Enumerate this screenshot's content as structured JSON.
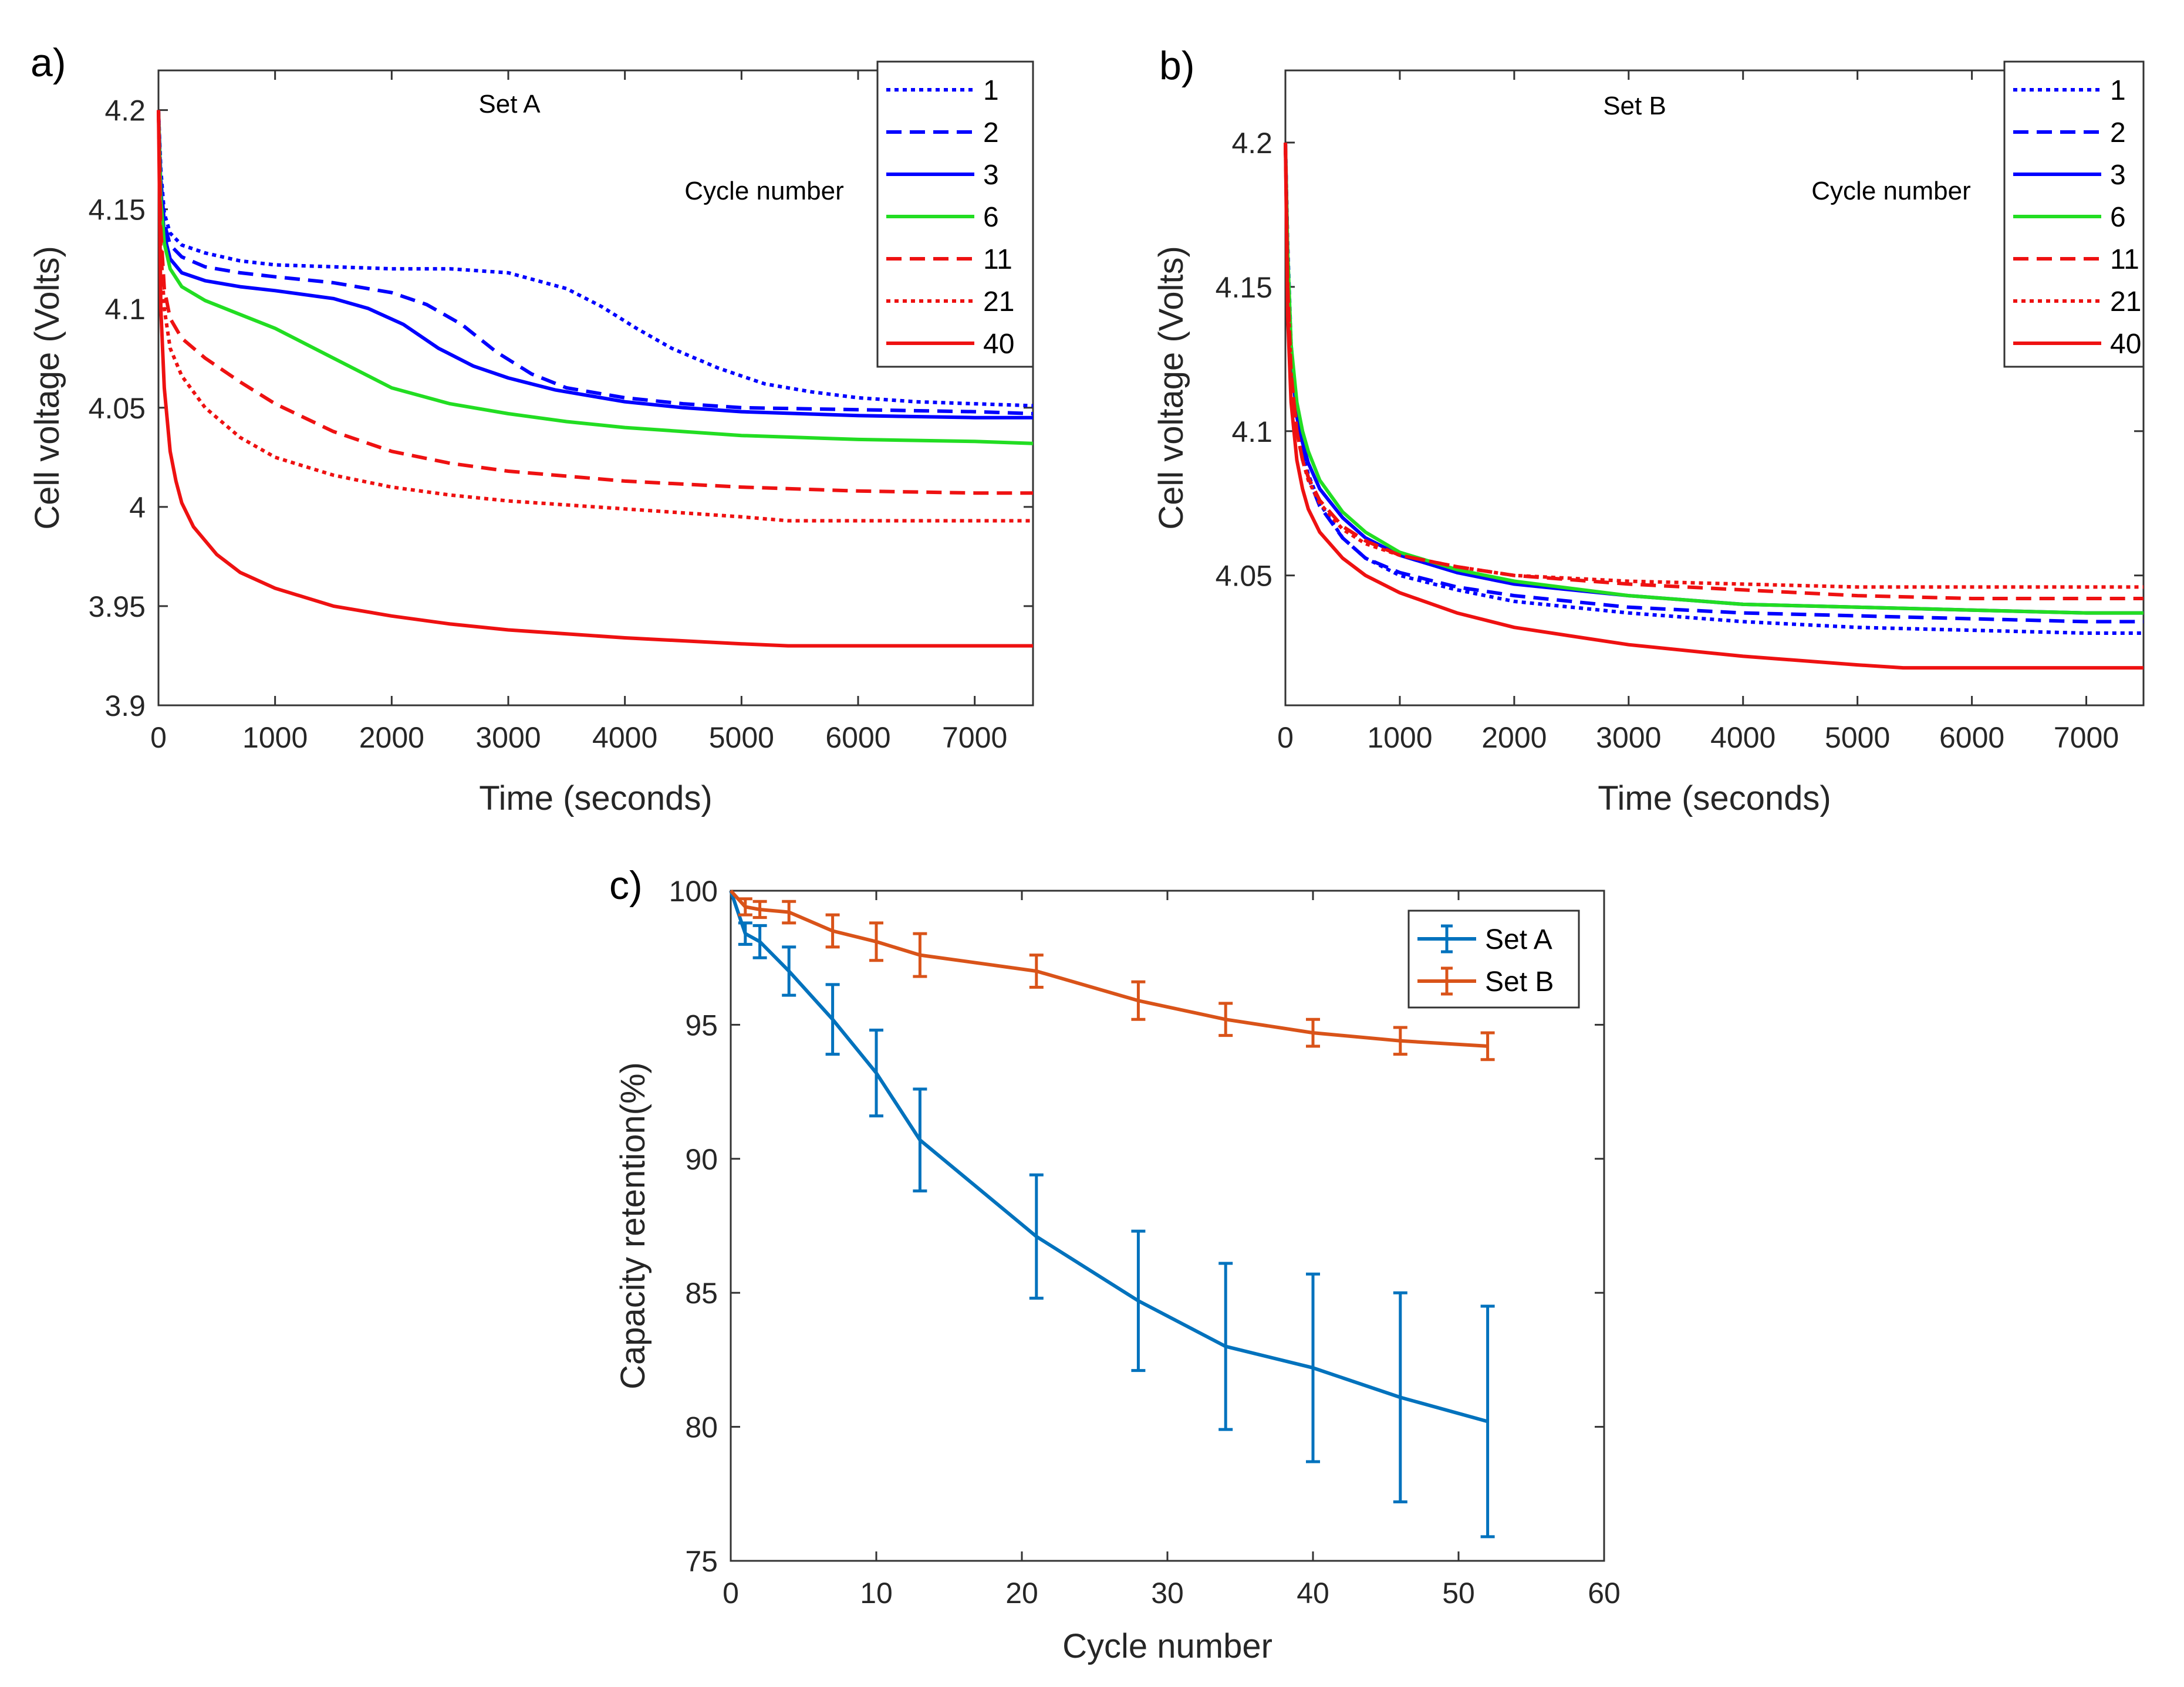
{
  "chart_data": [
    {
      "panel": "a)",
      "type": "line",
      "title": "Set A",
      "xlabel": "Time (seconds)",
      "ylabel": "Cell voltage (Volts)",
      "xlim": [
        0,
        7500
      ],
      "ylim": [
        3.9,
        4.22
      ],
      "xticks": [
        0,
        1000,
        2000,
        3000,
        4000,
        5000,
        6000,
        7000
      ],
      "yticks": [
        3.9,
        3.95,
        4,
        4.05,
        4.1,
        4.15,
        4.2
      ],
      "xtick_labels": [
        "0",
        "1000",
        "2000",
        "3000",
        "4000",
        "5000",
        "6000",
        "7000"
      ],
      "ytick_labels": [
        "3.9",
        "3.95",
        "4",
        "4.05",
        "4.1",
        "4.15",
        "4.2"
      ],
      "legend_title": "Cycle number",
      "legend_position": "top-right",
      "series": [
        {
          "name": "1",
          "color": "#0000ff",
          "dash": "dotted",
          "x": [
            0,
            20,
            50,
            100,
            200,
            400,
            700,
            1000,
            1500,
            2000,
            2500,
            3000,
            3500,
            3800,
            4100,
            4400,
            4800,
            5200,
            5600,
            6000,
            6500,
            7000,
            7500
          ],
          "y": [
            4.2,
            4.17,
            4.148,
            4.138,
            4.132,
            4.128,
            4.124,
            4.122,
            4.121,
            4.12,
            4.12,
            4.118,
            4.11,
            4.101,
            4.09,
            4.08,
            4.07,
            4.062,
            4.058,
            4.055,
            4.053,
            4.052,
            4.051
          ]
        },
        {
          "name": "2",
          "color": "#0000ff",
          "dash": "dashed",
          "x": [
            0,
            20,
            50,
            100,
            200,
            400,
            700,
            1000,
            1500,
            2000,
            2300,
            2600,
            2900,
            3200,
            3500,
            4000,
            4500,
            5000,
            6000,
            7000,
            7500
          ],
          "y": [
            4.2,
            4.165,
            4.143,
            4.132,
            4.126,
            4.121,
            4.118,
            4.116,
            4.113,
            4.108,
            4.102,
            4.092,
            4.078,
            4.067,
            4.06,
            4.055,
            4.052,
            4.05,
            4.049,
            4.048,
            4.047
          ]
        },
        {
          "name": "3",
          "color": "#0000ff",
          "dash": "solid",
          "x": [
            0,
            20,
            50,
            100,
            200,
            400,
            700,
            1000,
            1500,
            1800,
            2100,
            2400,
            2700,
            3000,
            3400,
            4000,
            4500,
            5000,
            6000,
            7000,
            7500
          ],
          "y": [
            4.2,
            4.16,
            4.137,
            4.125,
            4.118,
            4.114,
            4.111,
            4.109,
            4.105,
            4.1,
            4.092,
            4.08,
            4.071,
            4.065,
            4.059,
            4.053,
            4.05,
            4.048,
            4.046,
            4.045,
            4.045
          ]
        },
        {
          "name": "6",
          "color": "#22dd22",
          "dash": "solid",
          "x": [
            0,
            20,
            50,
            100,
            200,
            400,
            700,
            1000,
            1500,
            2000,
            2500,
            3000,
            3500,
            4000,
            5000,
            6000,
            7000,
            7500
          ],
          "y": [
            4.2,
            4.155,
            4.133,
            4.12,
            4.111,
            4.104,
            4.097,
            4.09,
            4.075,
            4.06,
            4.052,
            4.047,
            4.043,
            4.04,
            4.036,
            4.034,
            4.033,
            4.032
          ]
        },
        {
          "name": "11",
          "color": "#ee1111",
          "dash": "dashed",
          "x": [
            0,
            20,
            50,
            100,
            200,
            400,
            700,
            1000,
            1500,
            2000,
            2500,
            3000,
            4000,
            5000,
            6000,
            7000,
            7500
          ],
          "y": [
            4.2,
            4.14,
            4.11,
            4.095,
            4.085,
            4.075,
            4.063,
            4.052,
            4.038,
            4.028,
            4.022,
            4.018,
            4.013,
            4.01,
            4.008,
            4.007,
            4.007
          ]
        },
        {
          "name": "21",
          "color": "#ee1111",
          "dash": "dotted",
          "x": [
            0,
            20,
            50,
            100,
            200,
            400,
            700,
            1000,
            1500,
            2000,
            2500,
            3000,
            4000,
            5000,
            5400,
            6000,
            7000,
            7500
          ],
          "y": [
            4.2,
            4.13,
            4.1,
            4.08,
            4.066,
            4.05,
            4.035,
            4.025,
            4.016,
            4.01,
            4.006,
            4.003,
            3.999,
            3.995,
            3.993,
            3.993,
            3.993,
            3.993
          ]
        },
        {
          "name": "40",
          "color": "#ee1111",
          "dash": "solid",
          "x": [
            0,
            20,
            50,
            100,
            150,
            200,
            300,
            500,
            700,
            1000,
            1500,
            2000,
            2500,
            3000,
            4000,
            5000,
            5400,
            6000,
            7000,
            7500
          ],
          "y": [
            4.2,
            4.1,
            4.06,
            4.028,
            4.013,
            4.002,
            3.99,
            3.976,
            3.967,
            3.959,
            3.95,
            3.945,
            3.941,
            3.938,
            3.934,
            3.931,
            3.93,
            3.93,
            3.93,
            3.93
          ]
        }
      ]
    },
    {
      "panel": "b)",
      "type": "line",
      "title": "Set B",
      "xlabel": "Time (seconds)",
      "ylabel": "Cell voltage (Volts)",
      "xlim": [
        0,
        7500
      ],
      "ylim": [
        4.005,
        4.225
      ],
      "xticks": [
        0,
        1000,
        2000,
        3000,
        4000,
        5000,
        6000,
        7000
      ],
      "yticks": [
        4.05,
        4.1,
        4.15,
        4.2
      ],
      "xtick_labels": [
        "0",
        "1000",
        "2000",
        "3000",
        "4000",
        "5000",
        "6000",
        "7000"
      ],
      "ytick_labels": [
        "4.05",
        "4.1",
        "4.15",
        "4.2"
      ],
      "legend_title": "Cycle number",
      "legend_position": "top-right",
      "series": [
        {
          "name": "1",
          "color": "#0000ff",
          "dash": "dotted",
          "x": [
            0,
            20,
            50,
            100,
            150,
            200,
            300,
            500,
            700,
            1000,
            1500,
            2000,
            3000,
            4000,
            5000,
            6000,
            7000,
            7500
          ],
          "y": [
            4.2,
            4.165,
            4.13,
            4.105,
            4.093,
            4.085,
            4.075,
            4.063,
            4.056,
            4.05,
            4.045,
            4.041,
            4.037,
            4.034,
            4.032,
            4.031,
            4.03,
            4.03
          ]
        },
        {
          "name": "2",
          "color": "#0000ff",
          "dash": "dashed",
          "x": [
            0,
            20,
            50,
            100,
            150,
            200,
            300,
            500,
            700,
            1000,
            1500,
            2000,
            3000,
            4000,
            5000,
            6000,
            7000,
            7500
          ],
          "y": [
            4.2,
            4.162,
            4.128,
            4.103,
            4.092,
            4.084,
            4.074,
            4.063,
            4.056,
            4.051,
            4.046,
            4.043,
            4.039,
            4.037,
            4.036,
            4.035,
            4.034,
            4.034
          ]
        },
        {
          "name": "3",
          "color": "#0000ff",
          "dash": "solid",
          "x": [
            0,
            20,
            50,
            100,
            150,
            200,
            300,
            500,
            700,
            1000,
            1500,
            2000,
            3000,
            4000,
            5000,
            6000,
            7000,
            7500
          ],
          "y": [
            4.2,
            4.16,
            4.126,
            4.105,
            4.096,
            4.089,
            4.08,
            4.07,
            4.063,
            4.057,
            4.051,
            4.047,
            4.043,
            4.04,
            4.039,
            4.038,
            4.037,
            4.037
          ]
        },
        {
          "name": "6",
          "color": "#22dd22",
          "dash": "solid",
          "x": [
            0,
            20,
            50,
            100,
            150,
            200,
            300,
            500,
            700,
            1000,
            1500,
            2000,
            3000,
            4000,
            5000,
            6000,
            7000,
            7500
          ],
          "y": [
            4.2,
            4.162,
            4.13,
            4.11,
            4.1,
            4.093,
            4.083,
            4.072,
            4.065,
            4.058,
            4.052,
            4.048,
            4.043,
            4.04,
            4.039,
            4.038,
            4.037,
            4.037
          ]
        },
        {
          "name": "11",
          "color": "#ee1111",
          "dash": "dashed",
          "x": [
            0,
            20,
            50,
            100,
            150,
            200,
            300,
            500,
            700,
            1000,
            1500,
            2000,
            3000,
            4000,
            5000,
            6000,
            7000,
            7500
          ],
          "y": [
            4.2,
            4.15,
            4.12,
            4.1,
            4.09,
            4.084,
            4.076,
            4.067,
            4.062,
            4.057,
            4.053,
            4.05,
            4.047,
            4.045,
            4.043,
            4.042,
            4.042,
            4.042
          ]
        },
        {
          "name": "21",
          "color": "#ee1111",
          "dash": "dotted",
          "x": [
            0,
            20,
            50,
            100,
            150,
            200,
            300,
            500,
            700,
            1000,
            1500,
            2000,
            3000,
            4000,
            5000,
            6000,
            7000,
            7500
          ],
          "y": [
            4.2,
            4.15,
            4.12,
            4.1,
            4.09,
            4.083,
            4.075,
            4.066,
            4.061,
            4.057,
            4.053,
            4.05,
            4.048,
            4.047,
            4.046,
            4.046,
            4.046,
            4.046
          ]
        },
        {
          "name": "40",
          "color": "#ee1111",
          "dash": "solid",
          "x": [
            0,
            20,
            50,
            100,
            150,
            200,
            300,
            500,
            700,
            1000,
            1500,
            2000,
            2500,
            3000,
            4000,
            5000,
            5400,
            6000,
            7000,
            7500
          ],
          "y": [
            4.2,
            4.14,
            4.11,
            4.09,
            4.08,
            4.073,
            4.065,
            4.056,
            4.05,
            4.044,
            4.037,
            4.032,
            4.029,
            4.026,
            4.022,
            4.019,
            4.018,
            4.018,
            4.018,
            4.018
          ]
        }
      ]
    },
    {
      "panel": "c)",
      "type": "line",
      "title": "",
      "xlabel": "Cycle number",
      "ylabel": "Capacity retention(%)",
      "xlim": [
        0,
        60
      ],
      "ylim": [
        75,
        100
      ],
      "xticks": [
        0,
        10,
        20,
        30,
        40,
        50,
        60
      ],
      "yticks": [
        75,
        80,
        85,
        90,
        95,
        100
      ],
      "xtick_labels": [
        "0",
        "10",
        "20",
        "30",
        "40",
        "50",
        "60"
      ],
      "ytick_labels": [
        "75",
        "80",
        "85",
        "90",
        "95",
        "100"
      ],
      "legend_position": "top-right",
      "series": [
        {
          "name": "Set A",
          "color": "#0072bd",
          "x": [
            0,
            1,
            2,
            4,
            7,
            10,
            13,
            21,
            28,
            34,
            40,
            46,
            52
          ],
          "y": [
            100,
            98.4,
            98.1,
            97.0,
            95.2,
            93.2,
            90.7,
            87.1,
            84.7,
            83.0,
            82.2,
            81.1,
            80.2
          ],
          "err": [
            0,
            0.4,
            0.6,
            0.9,
            1.3,
            1.6,
            1.9,
            2.3,
            2.6,
            3.1,
            3.5,
            3.9,
            4.3
          ]
        },
        {
          "name": "Set B",
          "color": "#d95319",
          "x": [
            0,
            1,
            2,
            4,
            7,
            10,
            13,
            21,
            28,
            34,
            40,
            46,
            52
          ],
          "y": [
            100,
            99.4,
            99.3,
            99.2,
            98.5,
            98.1,
            97.6,
            97.0,
            95.9,
            95.2,
            94.7,
            94.4,
            94.2
          ],
          "err": [
            0,
            0.3,
            0.3,
            0.4,
            0.6,
            0.7,
            0.8,
            0.6,
            0.7,
            0.6,
            0.5,
            0.5,
            0.5
          ]
        }
      ]
    }
  ]
}
